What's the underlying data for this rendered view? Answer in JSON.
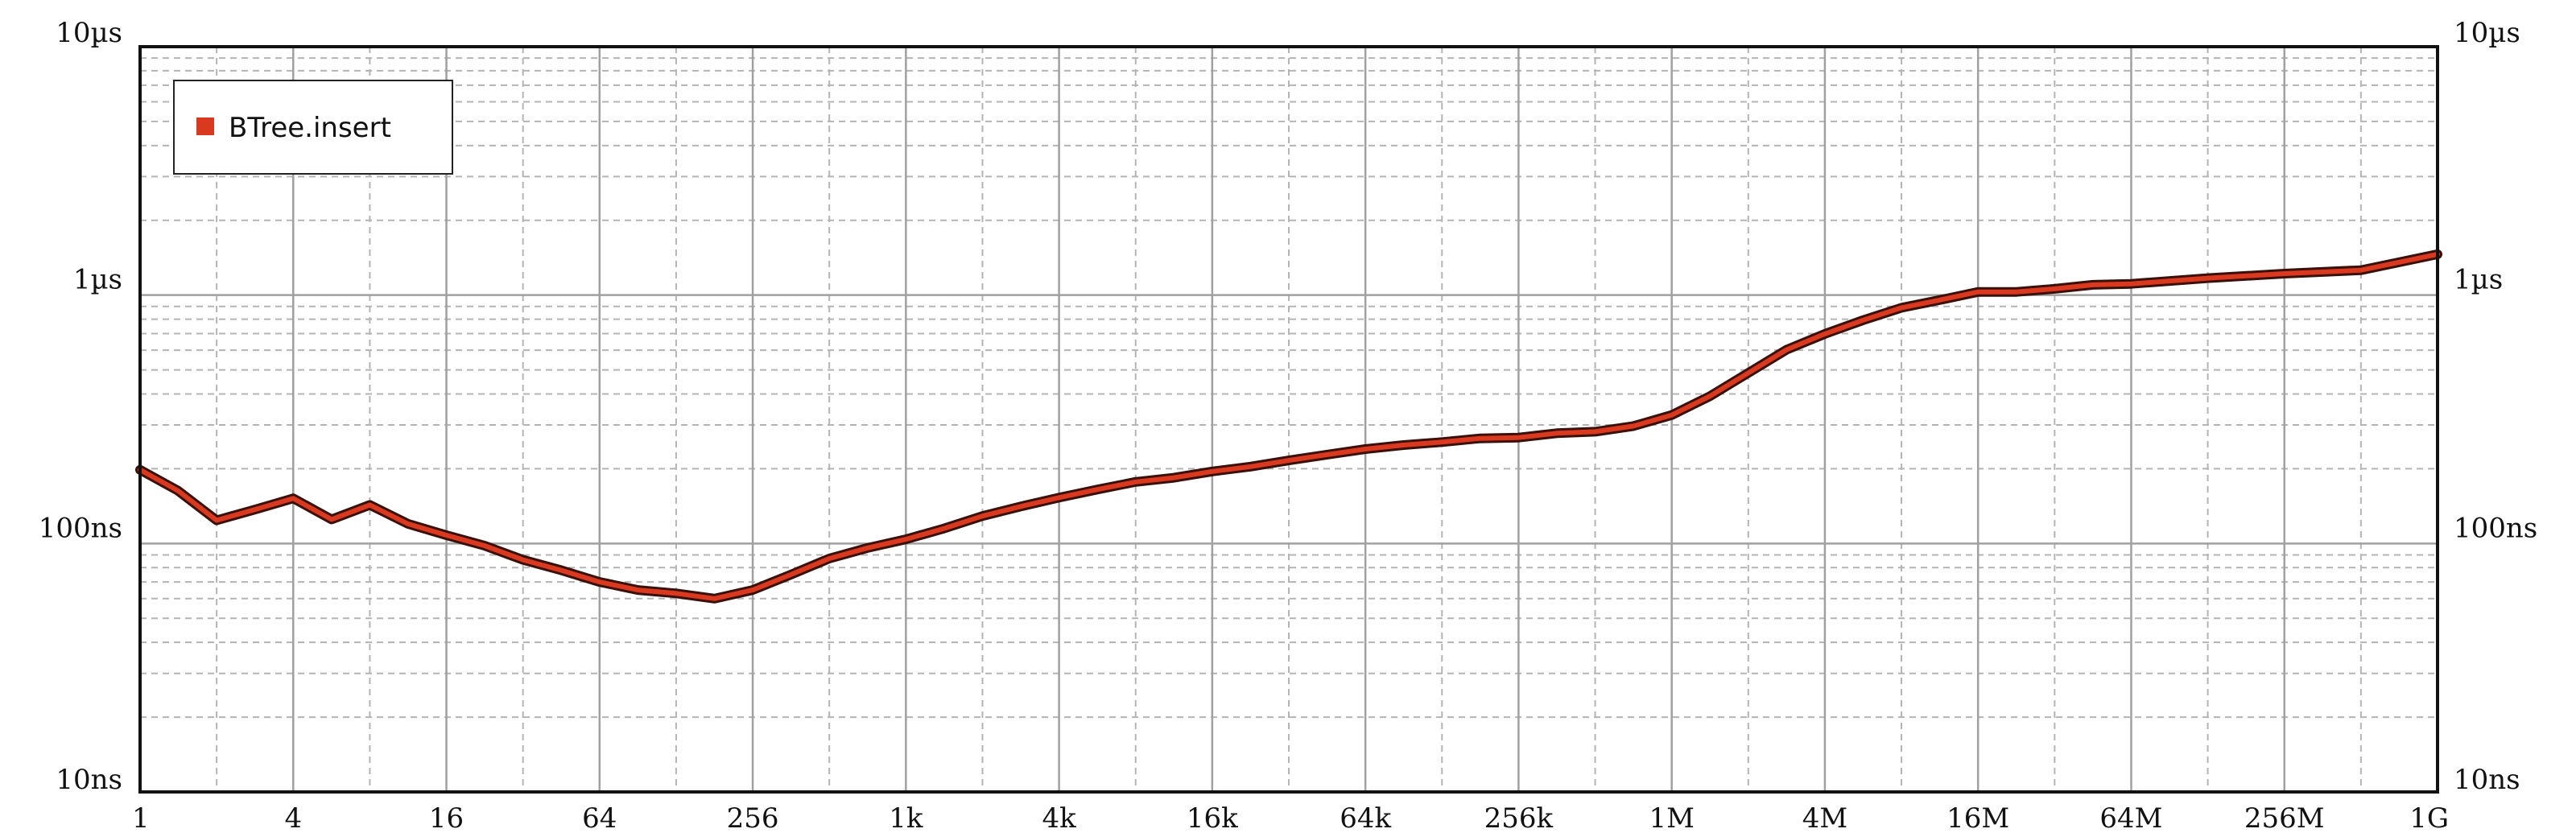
{
  "chart_data": {
    "type": "line",
    "title": "",
    "xlabel": "",
    "ylabel": "",
    "x_scale": "log2",
    "y_scale": "log10",
    "xlim": [
      1,
      1073741824
    ],
    "ylim": [
      10,
      10000
    ],
    "y_unit": "ns",
    "grid": true,
    "legend_position": "top-left",
    "x_tick_labels": [
      "1",
      "4",
      "16",
      "64",
      "256",
      "1k",
      "4k",
      "16k",
      "64k",
      "256k",
      "1M",
      "4M",
      "16M",
      "64M",
      "256M",
      "1G"
    ],
    "y_tick_labels": [
      "10ns",
      "100ns",
      "1µs",
      "10µs"
    ],
    "y_tick_values": [
      10,
      100,
      1000,
      10000
    ],
    "series": [
      {
        "name": "BTree.insert",
        "color": "#d9391f",
        "x": [
          1,
          1.41,
          2,
          2.83,
          4,
          5.66,
          8,
          11.3,
          16,
          22.6,
          32,
          45.3,
          64,
          90.5,
          128,
          181,
          256,
          362,
          512,
          724,
          1024,
          1448,
          2048,
          2896,
          4096,
          5793,
          8192,
          11585,
          16384,
          23170,
          32768,
          46341,
          65536,
          92682,
          131072,
          185364,
          262144,
          370728,
          524288,
          741455,
          1048576,
          1482910,
          2097152,
          2965821,
          4194304,
          5931642,
          8388608,
          11863283,
          16777216,
          23726566,
          33554432,
          47453133,
          67108864,
          134217728,
          268435456,
          536870912,
          1073741824
        ],
        "y": [
          198,
          163,
          124,
          137,
          152,
          125,
          143,
          120,
          108,
          98,
          86,
          78,
          70,
          65,
          63,
          60,
          65,
          75,
          87,
          96,
          104,
          115,
          129,
          141,
          153,
          165,
          177,
          184,
          195,
          204,
          216,
          228,
          240,
          249,
          256,
          265,
          267,
          278,
          282,
          297,
          329,
          392,
          486,
          603,
          698,
          793,
          889,
          955,
          1030,
          1030,
          1060,
          1100,
          1110,
          1170,
          1220,
          1260,
          1460
        ]
      }
    ]
  }
}
